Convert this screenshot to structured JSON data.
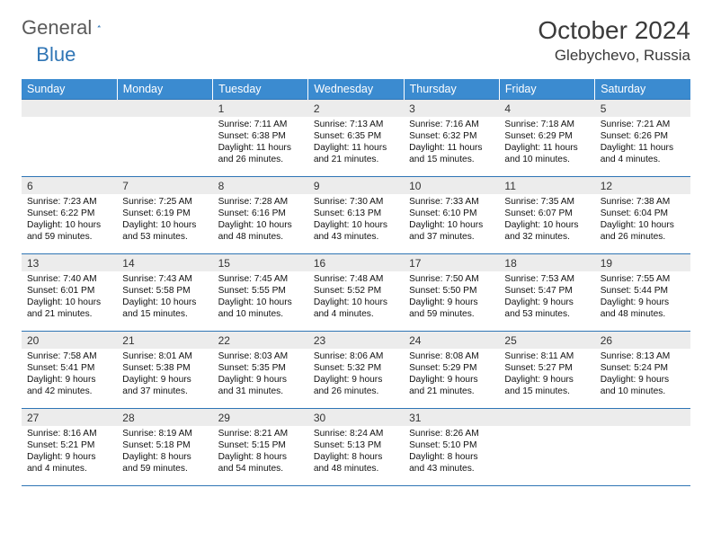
{
  "brand": {
    "part1": "General",
    "part2": "Blue"
  },
  "title": "October 2024",
  "location": "Glebychevo, Russia",
  "header_bg": "#3b8bd0",
  "border_color": "#2f75b5",
  "day_headers": [
    "Sunday",
    "Monday",
    "Tuesday",
    "Wednesday",
    "Thursday",
    "Friday",
    "Saturday"
  ],
  "weeks": [
    [
      null,
      null,
      {
        "n": "1",
        "sr": "7:11 AM",
        "ss": "6:38 PM",
        "dl": "11 hours and 26 minutes."
      },
      {
        "n": "2",
        "sr": "7:13 AM",
        "ss": "6:35 PM",
        "dl": "11 hours and 21 minutes."
      },
      {
        "n": "3",
        "sr": "7:16 AM",
        "ss": "6:32 PM",
        "dl": "11 hours and 15 minutes."
      },
      {
        "n": "4",
        "sr": "7:18 AM",
        "ss": "6:29 PM",
        "dl": "11 hours and 10 minutes."
      },
      {
        "n": "5",
        "sr": "7:21 AM",
        "ss": "6:26 PM",
        "dl": "11 hours and 4 minutes."
      }
    ],
    [
      {
        "n": "6",
        "sr": "7:23 AM",
        "ss": "6:22 PM",
        "dl": "10 hours and 59 minutes."
      },
      {
        "n": "7",
        "sr": "7:25 AM",
        "ss": "6:19 PM",
        "dl": "10 hours and 53 minutes."
      },
      {
        "n": "8",
        "sr": "7:28 AM",
        "ss": "6:16 PM",
        "dl": "10 hours and 48 minutes."
      },
      {
        "n": "9",
        "sr": "7:30 AM",
        "ss": "6:13 PM",
        "dl": "10 hours and 43 minutes."
      },
      {
        "n": "10",
        "sr": "7:33 AM",
        "ss": "6:10 PM",
        "dl": "10 hours and 37 minutes."
      },
      {
        "n": "11",
        "sr": "7:35 AM",
        "ss": "6:07 PM",
        "dl": "10 hours and 32 minutes."
      },
      {
        "n": "12",
        "sr": "7:38 AM",
        "ss": "6:04 PM",
        "dl": "10 hours and 26 minutes."
      }
    ],
    [
      {
        "n": "13",
        "sr": "7:40 AM",
        "ss": "6:01 PM",
        "dl": "10 hours and 21 minutes."
      },
      {
        "n": "14",
        "sr": "7:43 AM",
        "ss": "5:58 PM",
        "dl": "10 hours and 15 minutes."
      },
      {
        "n": "15",
        "sr": "7:45 AM",
        "ss": "5:55 PM",
        "dl": "10 hours and 10 minutes."
      },
      {
        "n": "16",
        "sr": "7:48 AM",
        "ss": "5:52 PM",
        "dl": "10 hours and 4 minutes."
      },
      {
        "n": "17",
        "sr": "7:50 AM",
        "ss": "5:50 PM",
        "dl": "9 hours and 59 minutes."
      },
      {
        "n": "18",
        "sr": "7:53 AM",
        "ss": "5:47 PM",
        "dl": "9 hours and 53 minutes."
      },
      {
        "n": "19",
        "sr": "7:55 AM",
        "ss": "5:44 PM",
        "dl": "9 hours and 48 minutes."
      }
    ],
    [
      {
        "n": "20",
        "sr": "7:58 AM",
        "ss": "5:41 PM",
        "dl": "9 hours and 42 minutes."
      },
      {
        "n": "21",
        "sr": "8:01 AM",
        "ss": "5:38 PM",
        "dl": "9 hours and 37 minutes."
      },
      {
        "n": "22",
        "sr": "8:03 AM",
        "ss": "5:35 PM",
        "dl": "9 hours and 31 minutes."
      },
      {
        "n": "23",
        "sr": "8:06 AM",
        "ss": "5:32 PM",
        "dl": "9 hours and 26 minutes."
      },
      {
        "n": "24",
        "sr": "8:08 AM",
        "ss": "5:29 PM",
        "dl": "9 hours and 21 minutes."
      },
      {
        "n": "25",
        "sr": "8:11 AM",
        "ss": "5:27 PM",
        "dl": "9 hours and 15 minutes."
      },
      {
        "n": "26",
        "sr": "8:13 AM",
        "ss": "5:24 PM",
        "dl": "9 hours and 10 minutes."
      }
    ],
    [
      {
        "n": "27",
        "sr": "8:16 AM",
        "ss": "5:21 PM",
        "dl": "9 hours and 4 minutes."
      },
      {
        "n": "28",
        "sr": "8:19 AM",
        "ss": "5:18 PM",
        "dl": "8 hours and 59 minutes."
      },
      {
        "n": "29",
        "sr": "8:21 AM",
        "ss": "5:15 PM",
        "dl": "8 hours and 54 minutes."
      },
      {
        "n": "30",
        "sr": "8:24 AM",
        "ss": "5:13 PM",
        "dl": "8 hours and 48 minutes."
      },
      {
        "n": "31",
        "sr": "8:26 AM",
        "ss": "5:10 PM",
        "dl": "8 hours and 43 minutes."
      },
      null,
      null
    ]
  ],
  "labels": {
    "sunrise": "Sunrise:",
    "sunset": "Sunset:",
    "daylight": "Daylight:"
  }
}
